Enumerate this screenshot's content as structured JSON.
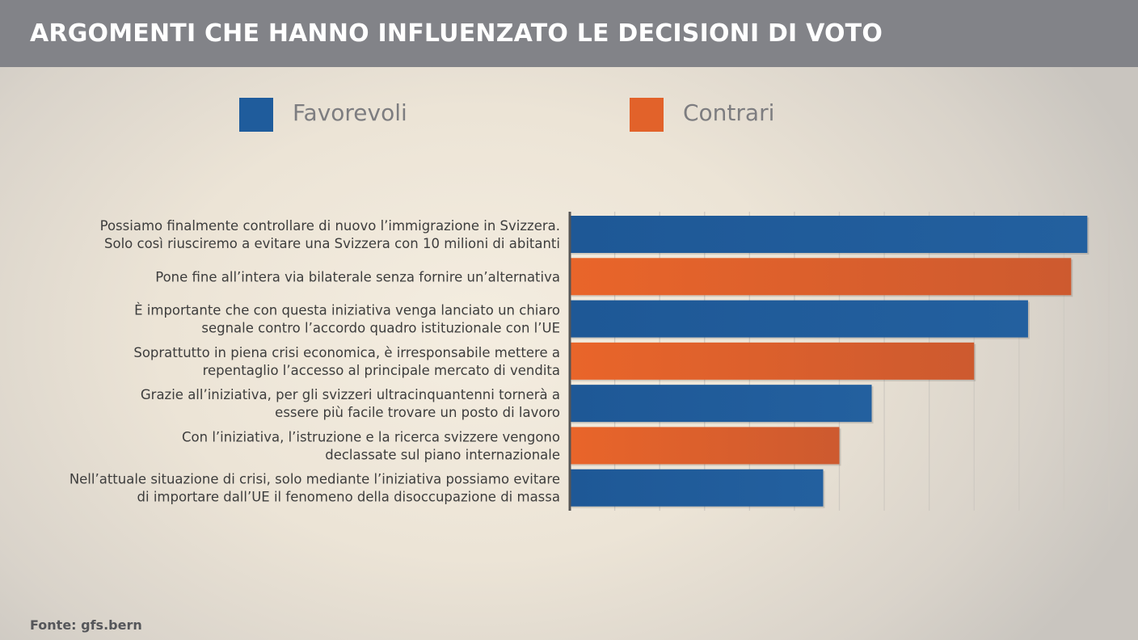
{
  "header": {
    "title": "ARGOMENTI CHE HANNO INFLUENZATO LE DECISIONI DI VOTO"
  },
  "legend": [
    {
      "label": "Favorevoli",
      "color": "#1f5c9c"
    },
    {
      "label": "Contrari",
      "color": "#e2622a"
    }
  ],
  "source": "Fonte: gfs.bern",
  "chart_data": {
    "type": "bar",
    "orientation": "horizontal",
    "title": "ARGOMENTI CHE HANNO INFLUENZATO LE DECISIONI DI VOTO",
    "grid": true,
    "legend_position": "top",
    "xlim": [
      0,
      100
    ],
    "series": [
      {
        "name": "Favorevoli",
        "color": "#1f5c9c"
      },
      {
        "name": "Contrari",
        "color": "#e2622a"
      }
    ],
    "categories": [
      [
        "Possiamo finalmente controllare di nuovo l’immigrazione in Svizzera.",
        "Solo così riusciremo a evitare una Svizzera con 10 milioni di abitanti"
      ],
      [
        "Pone fine all’intera via bilaterale senza fornire un’alternativa"
      ],
      [
        "È importante che con questa iniziativa venga lanciato un chiaro",
        "segnale contro l’accordo quadro istituzionale con l’UE"
      ],
      [
        "Soprattutto in piena crisi economica, è irresponsabile mettere a",
        "repentaglio l’accesso al principale mercato di vendita"
      ],
      [
        "Grazie all’iniziativa, per gli svizzeri ultracinquantenni tornerà a",
        "essere più facile trovare un posto di lavoro"
      ],
      [
        "Con l’iniziativa, l’istruzione e la ricerca svizzere vengono",
        "declassate sul piano internazionale"
      ],
      [
        "Nell’attuale situazione di crisi, solo mediante l’iniziativa possiamo evitare",
        "di importare dall’UE il fenomeno della disoccupazione di massa"
      ]
    ],
    "bar_series": [
      "Favorevoli",
      "Contrari",
      "Favorevoli",
      "Contrari",
      "Favorevoli",
      "Contrari",
      "Favorevoli"
    ],
    "values": [
      96,
      93,
      85,
      75,
      56,
      50,
      47
    ]
  }
}
